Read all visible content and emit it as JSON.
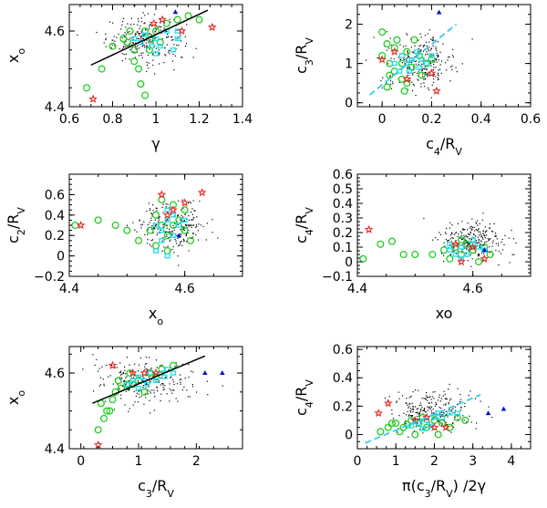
{
  "colors": {
    "black_dots": "#000000",
    "green_circles": "#22cc22",
    "cyan_squares": "#22ddee",
    "red_stars": "#ee2222",
    "blue_triangles": "#1111cc",
    "fit_black": "#000000",
    "fit_cyan": "#33ccee"
  },
  "chart_data": [
    {
      "id": "p1",
      "type": "scatter",
      "xlabel": "γ",
      "ylabel": "x",
      "ylabel_sub": "o",
      "xlim": [
        0.6,
        1.4
      ],
      "ylim": [
        4.4,
        4.67
      ],
      "xticks": [
        0.6,
        0.8,
        1,
        1.2,
        1.4
      ],
      "xtick_labels": [
        "0.6",
        "0.8",
        "1",
        "1.2",
        "1.4"
      ],
      "yticks": [
        4.4,
        4.6
      ],
      "ytick_labels": [
        "4.4",
        "4.6"
      ],
      "cloud": {
        "cx": 0.95,
        "cy": 4.58,
        "sx": 0.09,
        "sy": 0.03,
        "n": 260
      },
      "green": [
        [
          0.68,
          4.45
        ],
        [
          0.75,
          4.5
        ],
        [
          0.8,
          4.56
        ],
        [
          0.85,
          4.58
        ],
        [
          0.88,
          4.6
        ],
        [
          0.9,
          4.55
        ],
        [
          0.92,
          4.5
        ],
        [
          0.93,
          4.46
        ],
        [
          0.95,
          4.43
        ],
        [
          0.9,
          4.52
        ],
        [
          0.95,
          4.6
        ],
        [
          1.0,
          4.6
        ],
        [
          1.05,
          4.62
        ],
        [
          1.1,
          4.63
        ],
        [
          1.15,
          4.64
        ],
        [
          1.2,
          4.63
        ],
        [
          0.98,
          4.58
        ],
        [
          1.02,
          4.57
        ],
        [
          0.87,
          4.57
        ],
        [
          0.97,
          4.55
        ]
      ],
      "cyan": [
        [
          0.9,
          4.58
        ],
        [
          0.95,
          4.59
        ],
        [
          1.0,
          4.58
        ],
        [
          1.05,
          4.6
        ],
        [
          1.1,
          4.58
        ],
        [
          0.98,
          4.56
        ],
        [
          1.02,
          4.56
        ],
        [
          1.08,
          4.55
        ],
        [
          0.93,
          4.57
        ],
        [
          1.0,
          4.54
        ],
        [
          1.1,
          4.6
        ]
      ],
      "red": [
        [
          0.71,
          4.42
        ],
        [
          1.03,
          4.63
        ],
        [
          1.12,
          4.6
        ],
        [
          1.26,
          4.61
        ],
        [
          0.99,
          4.62
        ]
      ],
      "blue": [
        [
          1.09,
          4.65
        ]
      ],
      "fit": {
        "x": [
          0.7,
          1.24
        ],
        "y": [
          4.51,
          4.655
        ]
      }
    },
    {
      "id": "p2",
      "type": "scatter",
      "xlabel": "c",
      "xlabel_sub": "4",
      "xlabel_tail": "/R",
      "xlabel_tail_sub": "V",
      "ylabel": "c",
      "ylabel_sub": "3",
      "ylabel_tail": "/R",
      "ylabel_tail_sub": "V",
      "xlim": [
        -0.1,
        0.6
      ],
      "ylim": [
        -0.1,
        2.5
      ],
      "xticks": [
        0,
        0.2,
        0.4,
        0.6
      ],
      "xtick_labels": [
        "0",
        "0.2",
        "0.4",
        "0.6"
      ],
      "yticks": [
        0,
        1,
        2
      ],
      "ytick_labels": [
        "0",
        "1",
        "2"
      ],
      "cloud": {
        "cx": 0.15,
        "cy": 1.05,
        "sx": 0.07,
        "sy": 0.35,
        "n": 260
      },
      "green": [
        [
          0.0,
          1.8
        ],
        [
          0.02,
          1.5
        ],
        [
          0.0,
          1.2
        ],
        [
          0.03,
          1.0
        ],
        [
          0.05,
          0.8
        ],
        [
          0.08,
          0.6
        ],
        [
          0.02,
          0.4
        ],
        [
          0.1,
          1.3
        ],
        [
          0.13,
          1.6
        ],
        [
          0.15,
          1.2
        ],
        [
          0.18,
          1.0
        ],
        [
          0.05,
          1.4
        ],
        [
          0.08,
          1.0
        ],
        [
          0.12,
          0.9
        ],
        [
          0.1,
          0.5
        ],
        [
          0.16,
          0.7
        ],
        [
          0.03,
          0.7
        ],
        [
          0.06,
          1.6
        ],
        [
          0.09,
          0.3
        ],
        [
          0.2,
          1.1
        ]
      ],
      "cyan": [
        [
          0.05,
          1.0
        ],
        [
          0.08,
          1.2
        ],
        [
          0.1,
          1.0
        ],
        [
          0.12,
          1.1
        ],
        [
          0.15,
          0.9
        ],
        [
          0.14,
          1.3
        ],
        [
          0.18,
          1.0
        ],
        [
          0.2,
          1.2
        ],
        [
          0.11,
          0.8
        ],
        [
          0.16,
          1.1
        ],
        [
          0.07,
          0.8
        ]
      ],
      "red": [
        [
          0.2,
          0.75
        ],
        [
          0.1,
          0.6
        ],
        [
          0.05,
          1.3
        ],
        [
          0.22,
          0.3
        ],
        [
          0.0,
          1.1
        ]
      ],
      "blue": [
        [
          0.23,
          2.3
        ]
      ],
      "fit": {
        "x": [
          -0.05,
          0.3
        ],
        "y": [
          0.2,
          2.0
        ]
      }
    },
    {
      "id": "p3",
      "type": "scatter",
      "xlabel": "x",
      "xlabel_sub": "o",
      "ylabel": "c",
      "ylabel_sub": "2",
      "ylabel_tail": "/R",
      "ylabel_tail_sub": "V",
      "xlim": [
        4.4,
        4.7
      ],
      "ylim": [
        -0.2,
        0.8
      ],
      "xticks": [
        4.4,
        4.6
      ],
      "xtick_labels": [
        "4.4",
        "4.6"
      ],
      "yticks": [
        -0.2,
        0,
        0.2,
        0.4,
        0.6
      ],
      "ytick_labels": [
        "−0.2",
        "0",
        "0.2",
        "0.4",
        "0.6"
      ],
      "cloud": {
        "cx": 4.58,
        "cy": 0.3,
        "sx": 0.03,
        "sy": 0.12,
        "n": 240
      },
      "green": [
        [
          4.41,
          0.3
        ],
        [
          4.45,
          0.35
        ],
        [
          4.48,
          0.3
        ],
        [
          4.5,
          0.25
        ],
        [
          4.52,
          0.15
        ],
        [
          4.55,
          0.4
        ],
        [
          4.56,
          0.3
        ],
        [
          4.57,
          0.2
        ],
        [
          4.58,
          0.5
        ],
        [
          4.6,
          0.45
        ],
        [
          4.55,
          0.1
        ],
        [
          4.57,
          0.05
        ],
        [
          4.6,
          0.25
        ],
        [
          4.59,
          0.35
        ],
        [
          4.56,
          0.55
        ],
        [
          4.54,
          0.25
        ],
        [
          4.58,
          0.3
        ],
        [
          4.61,
          0.15
        ]
      ],
      "cyan": [
        [
          4.55,
          0.3
        ],
        [
          4.56,
          0.25
        ],
        [
          4.57,
          0.35
        ],
        [
          4.58,
          0.2
        ],
        [
          4.59,
          0.3
        ],
        [
          4.57,
          0.45
        ],
        [
          4.56,
          0.15
        ],
        [
          4.58,
          0.4
        ],
        [
          4.6,
          0.35
        ],
        [
          4.55,
          0.05
        ],
        [
          4.57,
          0.0
        ]
      ],
      "red": [
        [
          4.42,
          0.3
        ],
        [
          4.56,
          0.6
        ],
        [
          4.58,
          0.45
        ],
        [
          4.6,
          0.52
        ],
        [
          4.63,
          0.62
        ],
        [
          4.57,
          0.4
        ]
      ],
      "blue": [
        [
          4.59,
          0.2
        ]
      ]
    },
    {
      "id": "p4",
      "type": "scatter",
      "xlabel": "xo",
      "ylabel": "c",
      "ylabel_sub": "4",
      "ylabel_tail": "/R",
      "ylabel_tail_sub": "V",
      "xlim": [
        4.4,
        4.7
      ],
      "ylim": [
        -0.1,
        0.6
      ],
      "xticks": [
        4.4,
        4.6
      ],
      "xtick_labels": [
        "4.4",
        "4.6"
      ],
      "yticks": [
        -0.1,
        0,
        0.1,
        0.2,
        0.3,
        0.4,
        0.5,
        0.6
      ],
      "ytick_labels": [
        "−0.1",
        "0",
        "0.1",
        "0.2",
        "0.3",
        "0.4",
        "0.5",
        "0.6"
      ],
      "cloud": {
        "cx": 4.6,
        "cy": 0.15,
        "sx": 0.03,
        "sy": 0.07,
        "n": 260
      },
      "green": [
        [
          4.41,
          0.02
        ],
        [
          4.44,
          0.12
        ],
        [
          4.46,
          0.14
        ],
        [
          4.48,
          0.05
        ],
        [
          4.5,
          0.05
        ],
        [
          4.53,
          0.05
        ],
        [
          4.55,
          0.08
        ],
        [
          4.57,
          0.1
        ],
        [
          4.58,
          0.05
        ],
        [
          4.6,
          0.08
        ],
        [
          4.59,
          0.12
        ],
        [
          4.62,
          0.1
        ],
        [
          4.56,
          0.02
        ],
        [
          4.61,
          0.0
        ],
        [
          4.58,
          0.15
        ],
        [
          4.63,
          0.05
        ]
      ],
      "cyan": [
        [
          4.56,
          0.08
        ],
        [
          4.58,
          0.1
        ],
        [
          4.6,
          0.12
        ],
        [
          4.59,
          0.05
        ],
        [
          4.61,
          0.1
        ],
        [
          4.57,
          0.05
        ],
        [
          4.6,
          0.15
        ],
        [
          4.62,
          0.08
        ],
        [
          4.58,
          0.02
        ],
        [
          4.56,
          0.12
        ]
      ],
      "red": [
        [
          4.42,
          0.22
        ],
        [
          4.6,
          0.1
        ],
        [
          4.62,
          0.02
        ],
        [
          4.58,
          0.0
        ],
        [
          4.57,
          0.12
        ]
      ],
      "blue": [
        [
          4.62,
          0.08
        ]
      ]
    },
    {
      "id": "p5",
      "type": "scatter",
      "xlabel": "c",
      "xlabel_sub": "3",
      "xlabel_tail": "/R",
      "xlabel_tail_sub": "V",
      "ylabel": "x",
      "ylabel_sub": "o",
      "xlim": [
        -0.2,
        2.8
      ],
      "ylim": [
        4.4,
        4.67
      ],
      "xticks": [
        0,
        1,
        2
      ],
      "xtick_labels": [
        "0",
        "1",
        "2"
      ],
      "yticks": [
        4.4,
        4.6
      ],
      "ytick_labels": [
        "4.4",
        "4.6"
      ],
      "cloud": {
        "cx": 1.1,
        "cy": 4.58,
        "sx": 0.4,
        "sy": 0.03,
        "n": 240
      },
      "green": [
        [
          0.3,
          4.45
        ],
        [
          0.4,
          4.48
        ],
        [
          0.5,
          4.5
        ],
        [
          0.55,
          4.53
        ],
        [
          0.6,
          4.55
        ],
        [
          0.8,
          4.57
        ],
        [
          1.0,
          4.58
        ],
        [
          1.2,
          4.6
        ],
        [
          1.4,
          4.61
        ],
        [
          1.6,
          4.62
        ],
        [
          0.35,
          4.52
        ],
        [
          0.45,
          4.5
        ],
        [
          0.7,
          4.56
        ],
        [
          0.9,
          4.57
        ],
        [
          1.1,
          4.55
        ],
        [
          0.85,
          4.6
        ],
        [
          0.65,
          4.58
        ],
        [
          1.3,
          4.59
        ]
      ],
      "cyan": [
        [
          0.9,
          4.58
        ],
        [
          1.0,
          4.59
        ],
        [
          1.1,
          4.58
        ],
        [
          1.2,
          4.6
        ],
        [
          1.3,
          4.58
        ],
        [
          1.4,
          4.6
        ],
        [
          1.5,
          4.61
        ],
        [
          0.8,
          4.57
        ],
        [
          1.6,
          4.6
        ],
        [
          1.0,
          4.56
        ],
        [
          1.15,
          4.57
        ],
        [
          1.45,
          4.59
        ]
      ],
      "red": [
        [
          0.3,
          4.41
        ],
        [
          0.55,
          4.62
        ],
        [
          0.9,
          4.6
        ],
        [
          1.1,
          4.6
        ],
        [
          1.3,
          4.6
        ]
      ],
      "blue": [
        [
          2.15,
          4.6
        ],
        [
          2.45,
          4.6
        ]
      ],
      "fit": {
        "x": [
          0.2,
          2.15
        ],
        "y": [
          4.52,
          4.645
        ]
      }
    },
    {
      "id": "p6",
      "type": "scatter",
      "xlabel": "π(c",
      "xlabel_sub": "3",
      "xlabel_tail": "/R",
      "xlabel_tail_sub": "V",
      "xlabel_tail2": ") /2γ",
      "ylabel": "c",
      "ylabel_sub": "4",
      "ylabel_tail": "/R",
      "ylabel_tail_sub": "V",
      "xlim": [
        0,
        4.5
      ],
      "ylim": [
        -0.1,
        0.62
      ],
      "xticks": [
        0,
        1,
        2,
        3,
        4
      ],
      "xtick_labels": [
        "0",
        "1",
        "2",
        "3",
        "4"
      ],
      "yticks": [
        0,
        0.2,
        0.4,
        0.6
      ],
      "ytick_labels": [
        "0",
        "0.2",
        "0.4",
        "0.6"
      ],
      "cloud": {
        "cx": 1.9,
        "cy": 0.17,
        "sx": 0.5,
        "sy": 0.08,
        "n": 260
      },
      "green": [
        [
          0.6,
          0.02
        ],
        [
          0.8,
          0.05
        ],
        [
          1.0,
          0.08
        ],
        [
          1.2,
          0.05
        ],
        [
          1.4,
          0.1
        ],
        [
          1.5,
          0.0
        ],
        [
          1.6,
          0.08
        ],
        [
          1.8,
          0.05
        ],
        [
          2.0,
          0.1
        ],
        [
          2.2,
          0.08
        ],
        [
          2.4,
          0.05
        ],
        [
          2.6,
          0.12
        ],
        [
          2.8,
          0.1
        ],
        [
          1.1,
          0.02
        ],
        [
          1.7,
          0.12
        ],
        [
          2.1,
          0.0
        ],
        [
          1.3,
          0.07
        ],
        [
          0.9,
          0.08
        ]
      ],
      "cyan": [
        [
          1.4,
          0.06
        ],
        [
          1.6,
          0.08
        ],
        [
          1.8,
          0.1
        ],
        [
          2.0,
          0.12
        ],
        [
          2.2,
          0.12
        ],
        [
          2.4,
          0.15
        ],
        [
          1.5,
          0.1
        ],
        [
          1.9,
          0.06
        ],
        [
          2.1,
          0.15
        ],
        [
          2.6,
          0.15
        ],
        [
          1.7,
          0.04
        ]
      ],
      "red": [
        [
          0.55,
          0.15
        ],
        [
          0.8,
          0.22
        ],
        [
          1.5,
          0.1
        ],
        [
          1.8,
          0.12
        ],
        [
          2.0,
          0.05
        ],
        [
          2.3,
          0.05
        ]
      ],
      "blue": [
        [
          3.4,
          0.15
        ],
        [
          3.8,
          0.18
        ]
      ],
      "fit": {
        "x": [
          0.2,
          3.2
        ],
        "y": [
          -0.06,
          0.28
        ]
      }
    }
  ]
}
